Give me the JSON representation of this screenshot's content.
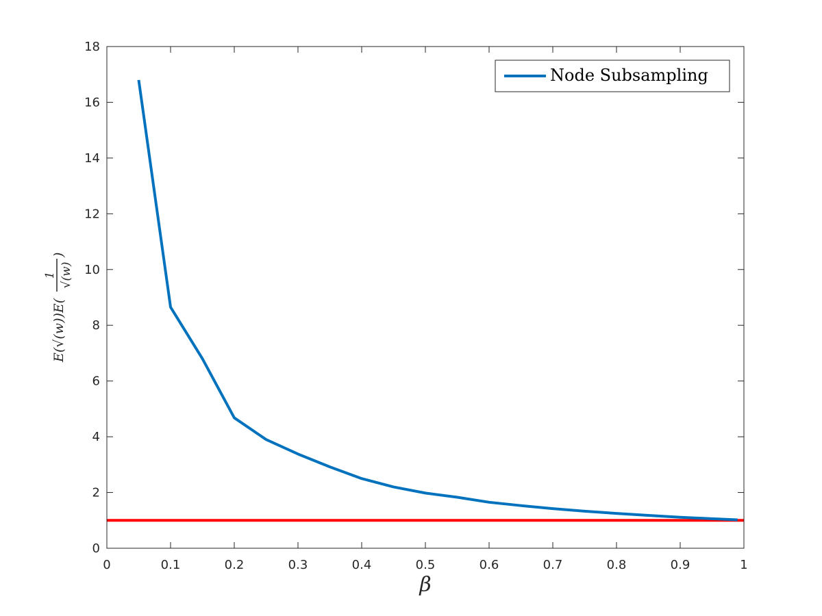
{
  "chart_data": {
    "type": "line",
    "xlabel": "β",
    "ylabel_parts": {
      "prefix": "E(√(w))E(",
      "numerator": "1",
      "denominator": "√(w)",
      "suffix": ")"
    },
    "xlim": [
      0,
      1
    ],
    "ylim": [
      0,
      18
    ],
    "xticks": [
      0,
      0.1,
      0.2,
      0.3,
      0.4,
      0.5,
      0.6,
      0.7,
      0.8,
      0.9,
      1
    ],
    "xtick_labels": [
      "0",
      "0.1",
      "0.2",
      "0.3",
      "0.4",
      "0.5",
      "0.6",
      "0.7",
      "0.8",
      "0.9",
      "1"
    ],
    "yticks": [
      0,
      2,
      4,
      6,
      8,
      10,
      12,
      14,
      16,
      18
    ],
    "ytick_labels": [
      "0",
      "2",
      "4",
      "6",
      "8",
      "10",
      "12",
      "14",
      "16",
      "18"
    ],
    "grid": false,
    "legend_position": "top-right",
    "series": [
      {
        "name": "Node Subsampling",
        "color": "#0072bd",
        "x": [
          0.05,
          0.1,
          0.15,
          0.2,
          0.25,
          0.3,
          0.35,
          0.4,
          0.45,
          0.5,
          0.55,
          0.6,
          0.65,
          0.7,
          0.75,
          0.8,
          0.85,
          0.9,
          0.95,
          0.99
        ],
        "y": [
          16.8,
          8.65,
          6.8,
          4.68,
          3.9,
          3.38,
          2.92,
          2.5,
          2.2,
          1.98,
          1.83,
          1.65,
          1.53,
          1.42,
          1.33,
          1.25,
          1.18,
          1.11,
          1.06,
          1.02
        ]
      }
    ],
    "reference_line": {
      "color": "#ff0000",
      "y": 1,
      "x": [
        0,
        1
      ]
    }
  }
}
